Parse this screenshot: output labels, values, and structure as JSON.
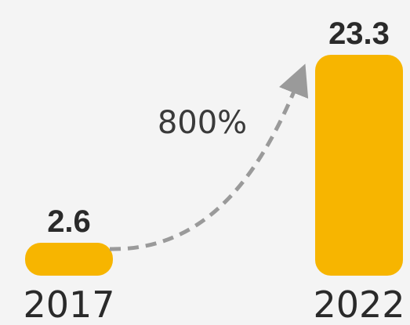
{
  "chart_data": {
    "type": "bar",
    "categories": [
      "2017",
      "2022"
    ],
    "values": [
      2.6,
      23.3
    ],
    "value_labels": [
      "2.6",
      "23.3"
    ],
    "annotation": "800%",
    "title": "",
    "xlabel": "",
    "ylabel": "",
    "grid": false,
    "colors": {
      "bar": "#f7b500",
      "arrow": "#9a9a9a",
      "text": "#2a2a2a",
      "background": "#f4f4f4"
    }
  }
}
